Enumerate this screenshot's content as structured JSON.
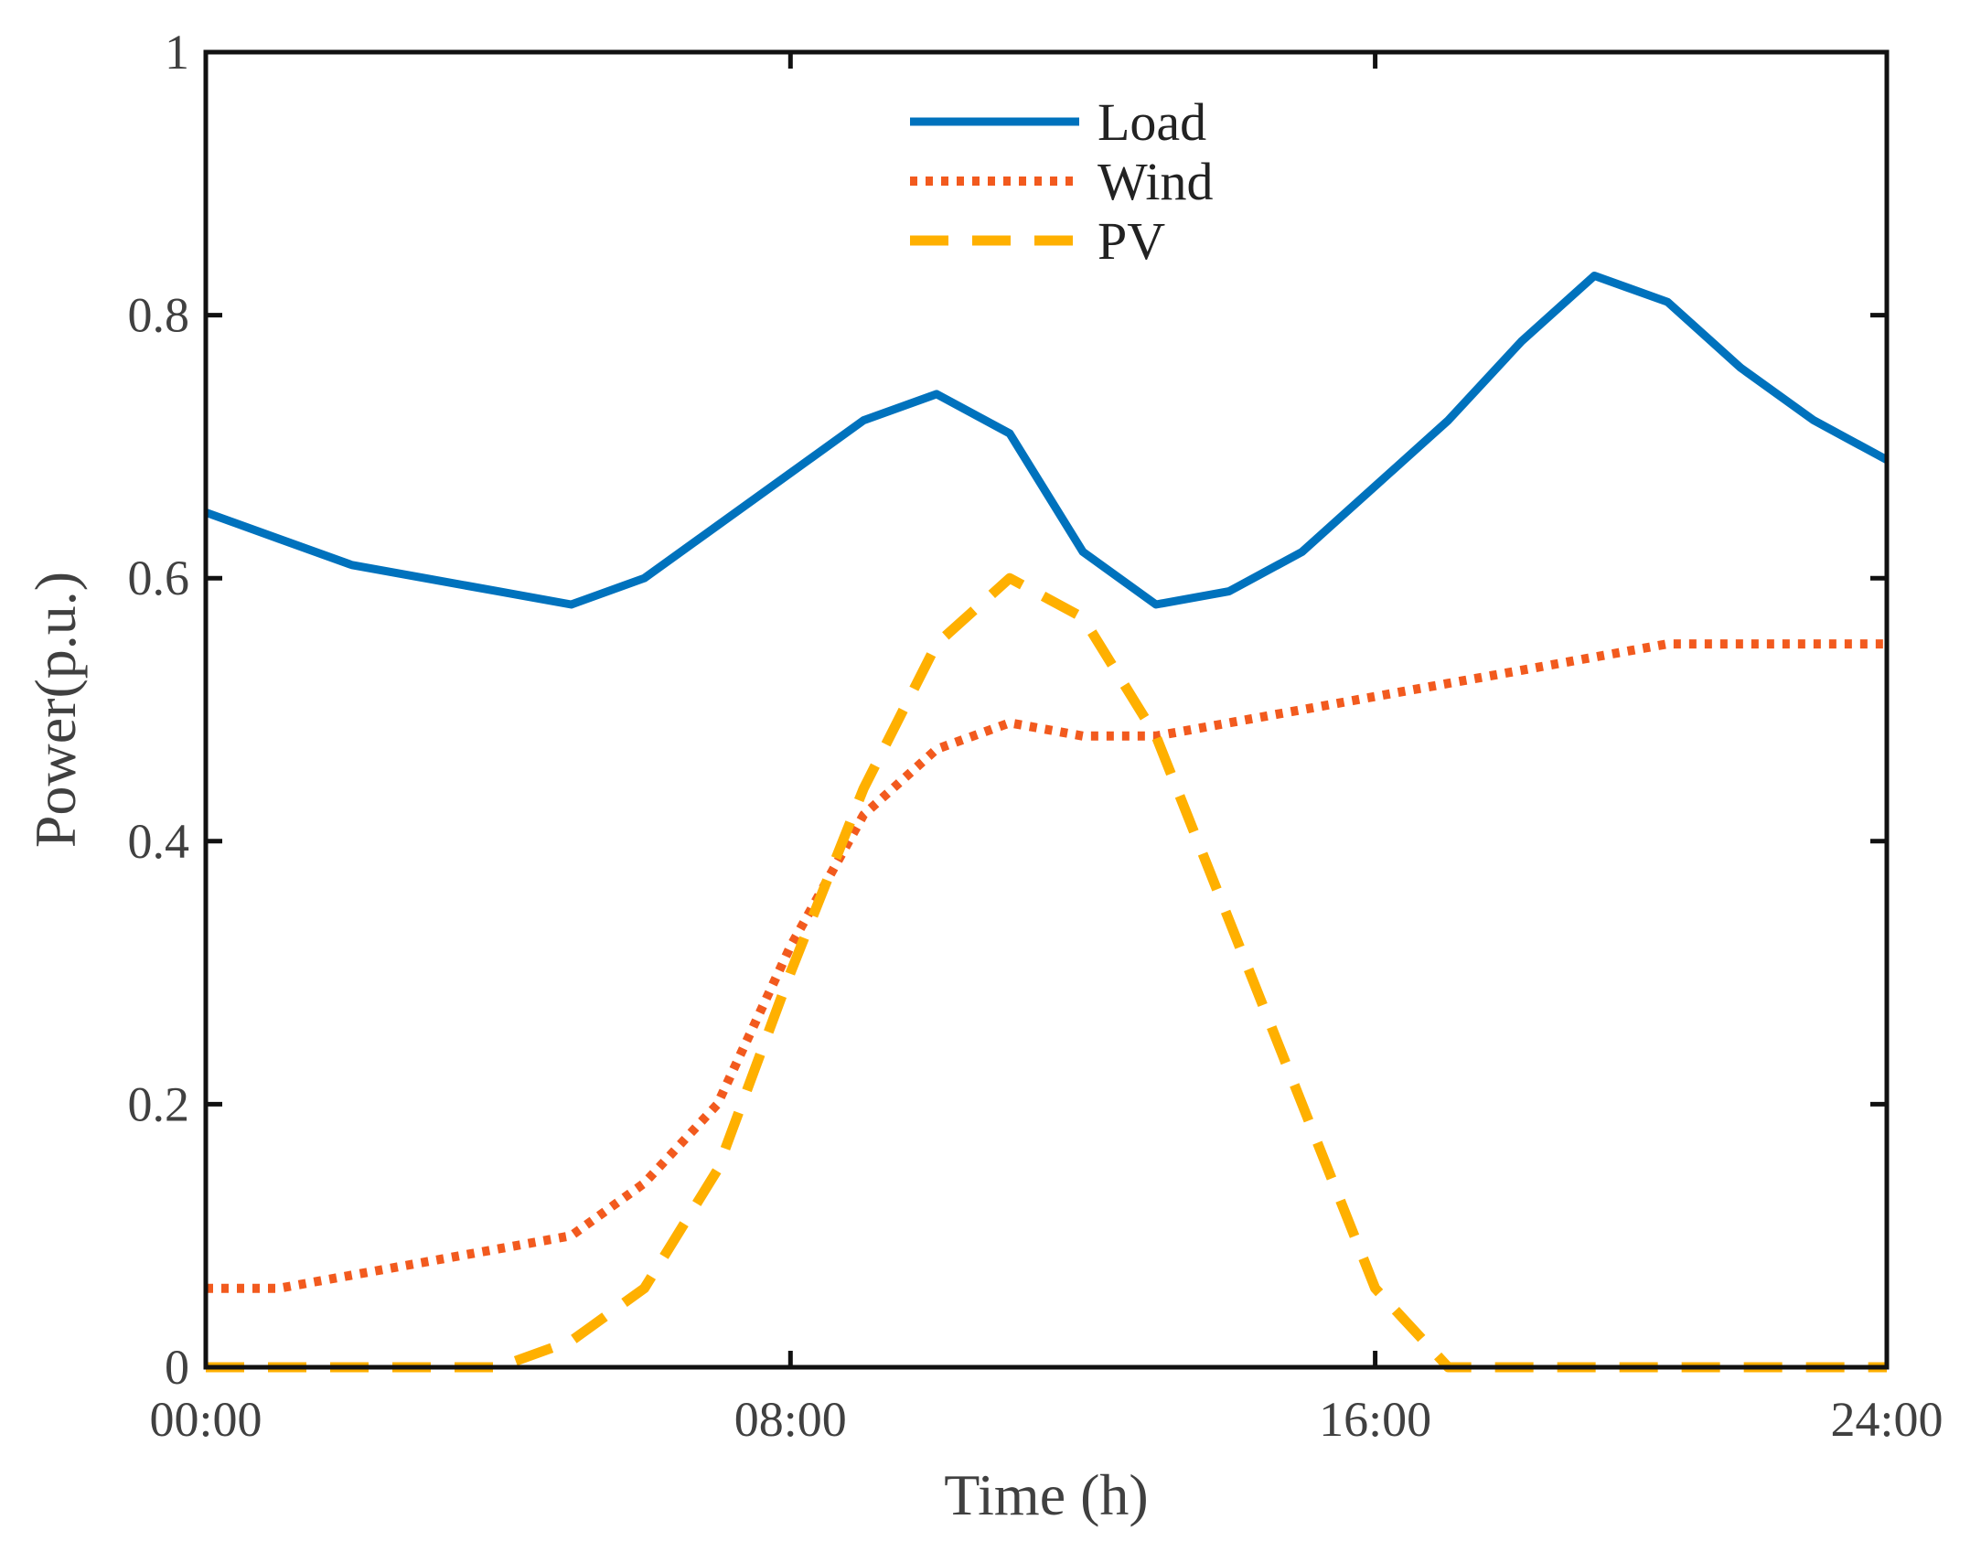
{
  "chart_data": {
    "type": "line",
    "title": "",
    "xlabel": "Time (h)",
    "ylabel": "Power(p.u.)",
    "xlim": [
      0,
      23
    ],
    "ylim": [
      0,
      1
    ],
    "grid": false,
    "legend_position": "top-center",
    "x_ticks": [
      {
        "value": 0,
        "label": "00:00"
      },
      {
        "value": 8,
        "label": "08:00"
      },
      {
        "value": 16,
        "label": "16:00"
      },
      {
        "value": 23,
        "label": "24:00"
      }
    ],
    "y_ticks": [
      {
        "value": 0,
        "label": "0"
      },
      {
        "value": 0.2,
        "label": "0.2"
      },
      {
        "value": 0.4,
        "label": "0.4"
      },
      {
        "value": 0.6,
        "label": "0.6"
      },
      {
        "value": 0.8,
        "label": "0.8"
      },
      {
        "value": 1,
        "label": "1"
      }
    ],
    "x": [
      0,
      1,
      2,
      3,
      4,
      5,
      6,
      7,
      8,
      9,
      10,
      11,
      12,
      13,
      14,
      15,
      16,
      17,
      18,
      19,
      20,
      21,
      22,
      23
    ],
    "series": [
      {
        "name": "Load",
        "color": "#0072BD",
        "style": "solid",
        "values": [
          0.65,
          0.63,
          0.61,
          0.6,
          0.59,
          0.58,
          0.6,
          0.64,
          0.68,
          0.72,
          0.74,
          0.71,
          0.62,
          0.58,
          0.59,
          0.62,
          0.67,
          0.72,
          0.78,
          0.83,
          0.81,
          0.76,
          0.72,
          0.69
        ]
      },
      {
        "name": "Wind",
        "color": "#F25A1E",
        "style": "dotted",
        "values": [
          0.06,
          0.06,
          0.07,
          0.08,
          0.09,
          0.1,
          0.14,
          0.2,
          0.32,
          0.42,
          0.47,
          0.49,
          0.48,
          0.48,
          0.49,
          0.5,
          0.51,
          0.52,
          0.53,
          0.54,
          0.55,
          0.55,
          0.55,
          0.55
        ]
      },
      {
        "name": "PV",
        "color": "#FFB000",
        "style": "dashed",
        "values": [
          0,
          0,
          0,
          0,
          0,
          0.02,
          0.06,
          0.15,
          0.3,
          0.44,
          0.55,
          0.6,
          0.57,
          0.48,
          0.34,
          0.2,
          0.06,
          0.0,
          0,
          0,
          0,
          0,
          0,
          0
        ]
      }
    ]
  }
}
